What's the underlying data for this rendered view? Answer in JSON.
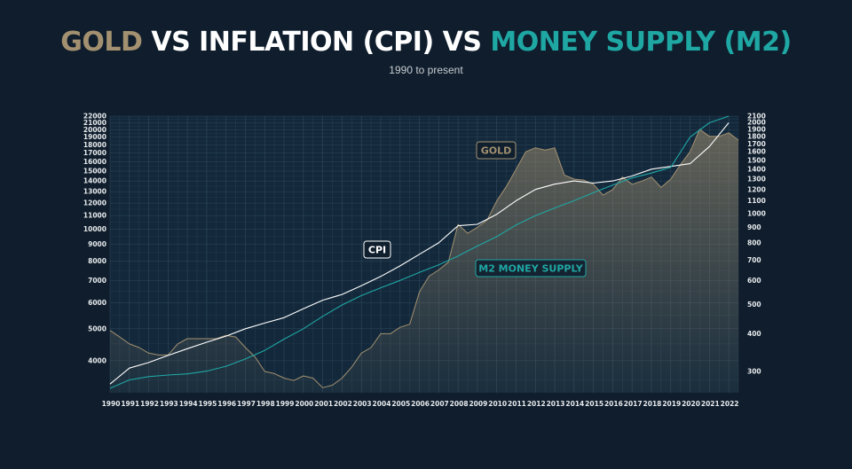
{
  "header": {
    "title_gold": "GOLD",
    "title_mid": " VS INFLATION (CPI) VS ",
    "title_m2": "MONEY SUPPLY (M2)",
    "subtitle": "1990 to present"
  },
  "colors": {
    "background": "#0f1d2c",
    "gold": "#a39070",
    "cpi": "#ffffff",
    "m2": "#1fa7a4",
    "grid": "#3c5368"
  },
  "chart_data": {
    "type": "line",
    "x_ticks": [
      "1990",
      "1991",
      "1992",
      "1993",
      "1994",
      "1995",
      "1996",
      "1997",
      "1998",
      "1999",
      "2000",
      "2001",
      "2002",
      "2003",
      "2004",
      "2005",
      "2006",
      "2007",
      "2008",
      "2009",
      "2010",
      "2011",
      "2012",
      "2013",
      "2014",
      "2015",
      "2016",
      "2017",
      "2018",
      "2019",
      "2020",
      "2021",
      "2022"
    ],
    "y_left_ticks": [
      4000,
      5000,
      6000,
      7000,
      8000,
      9000,
      10000,
      11000,
      12000,
      13000,
      14000,
      15000,
      16000,
      17000,
      18000,
      19000,
      20000,
      21000,
      22000
    ],
    "y_right_ticks": [
      300,
      400,
      500,
      600,
      700,
      800,
      900,
      1000,
      1100,
      1200,
      1300,
      1400,
      1500,
      1600,
      1700,
      1800,
      1900,
      2000,
      2100
    ],
    "y_left_range": [
      3200,
      22000
    ],
    "y_right_range": [
      255,
      2100
    ],
    "scale": "log",
    "grid": true,
    "annotations": [
      {
        "text": "GOLD",
        "series": "gold"
      },
      {
        "text": "CPI",
        "series": "cpi"
      },
      {
        "text": "M2 MONEY SUPPLY",
        "series": "m2"
      }
    ],
    "series": [
      {
        "name": "GOLD",
        "axis": "right",
        "x": [
          1990,
          1990.5,
          1991,
          1991.5,
          1992,
          1992.5,
          1993,
          1993.5,
          1994,
          1994.5,
          1995,
          1995.5,
          1996,
          1996.5,
          1997,
          1997.5,
          1998,
          1998.5,
          1999,
          1999.5,
          2000,
          2000.5,
          2001,
          2001.5,
          2002,
          2002.5,
          2003,
          2003.5,
          2004,
          2004.5,
          2005,
          2005.5,
          2006,
          2006.5,
          2007,
          2007.5,
          2008,
          2008.5,
          2009,
          2009.5,
          2010,
          2010.5,
          2011,
          2011.5,
          2012,
          2012.5,
          2013,
          2013.5,
          2014,
          2014.5,
          2015,
          2015.5,
          2016,
          2016.5,
          2017,
          2017.5,
          2018,
          2018.5,
          2019,
          2019.5,
          2020,
          2020.5,
          2021,
          2021.5,
          2022,
          2022.5
        ],
        "values": [
          410,
          390,
          370,
          360,
          345,
          340,
          340,
          370,
          385,
          385,
          385,
          385,
          395,
          390,
          360,
          335,
          300,
          295,
          285,
          280,
          290,
          285,
          265,
          270,
          285,
          310,
          345,
          360,
          400,
          400,
          420,
          430,
          550,
          620,
          650,
          690,
          920,
          860,
          900,
          950,
          1100,
          1230,
          1400,
          1600,
          1650,
          1620,
          1650,
          1340,
          1300,
          1290,
          1250,
          1150,
          1200,
          1320,
          1250,
          1280,
          1320,
          1220,
          1300,
          1450,
          1600,
          1900,
          1800,
          1800,
          1850,
          1750
        ]
      },
      {
        "name": "CPI",
        "axis": "left",
        "x": [
          1990,
          1991,
          1992,
          1993,
          1994,
          1995,
          1996,
          1997,
          1998,
          1999,
          2000,
          2001,
          2002,
          2003,
          2004,
          2005,
          2006,
          2007,
          2008,
          2009,
          2010,
          2011,
          2012,
          2013,
          2014,
          2015,
          2016,
          2017,
          2018,
          2019,
          2020,
          2021,
          2022
        ],
        "values": [
          3400,
          3800,
          3950,
          4150,
          4350,
          4550,
          4750,
          5000,
          5200,
          5400,
          5750,
          6100,
          6350,
          6750,
          7200,
          7750,
          8400,
          9100,
          10250,
          10350,
          11100,
          12200,
          13200,
          13700,
          14000,
          13800,
          14000,
          14500,
          15200,
          15500,
          15800,
          17800,
          21000
        ]
      },
      {
        "name": "M2 MONEY SUPPLY",
        "axis": "left",
        "x": [
          1990,
          1991,
          1992,
          1993,
          1994,
          1995,
          1996,
          1997,
          1998,
          1999,
          2000,
          2001,
          2002,
          2003,
          2004,
          2005,
          2006,
          2007,
          2008,
          2009,
          2010,
          2011,
          2012,
          2013,
          2014,
          2015,
          2016,
          2017,
          2018,
          2019,
          2020,
          2021,
          2022
        ],
        "values": [
          3300,
          3500,
          3580,
          3620,
          3650,
          3720,
          3850,
          4050,
          4300,
          4650,
          5000,
          5450,
          5900,
          6300,
          6650,
          7000,
          7400,
          7800,
          8300,
          8900,
          9500,
          10300,
          11000,
          11600,
          12200,
          12900,
          13600,
          14300,
          14800,
          15400,
          19000,
          21000,
          22000
        ]
      }
    ]
  }
}
